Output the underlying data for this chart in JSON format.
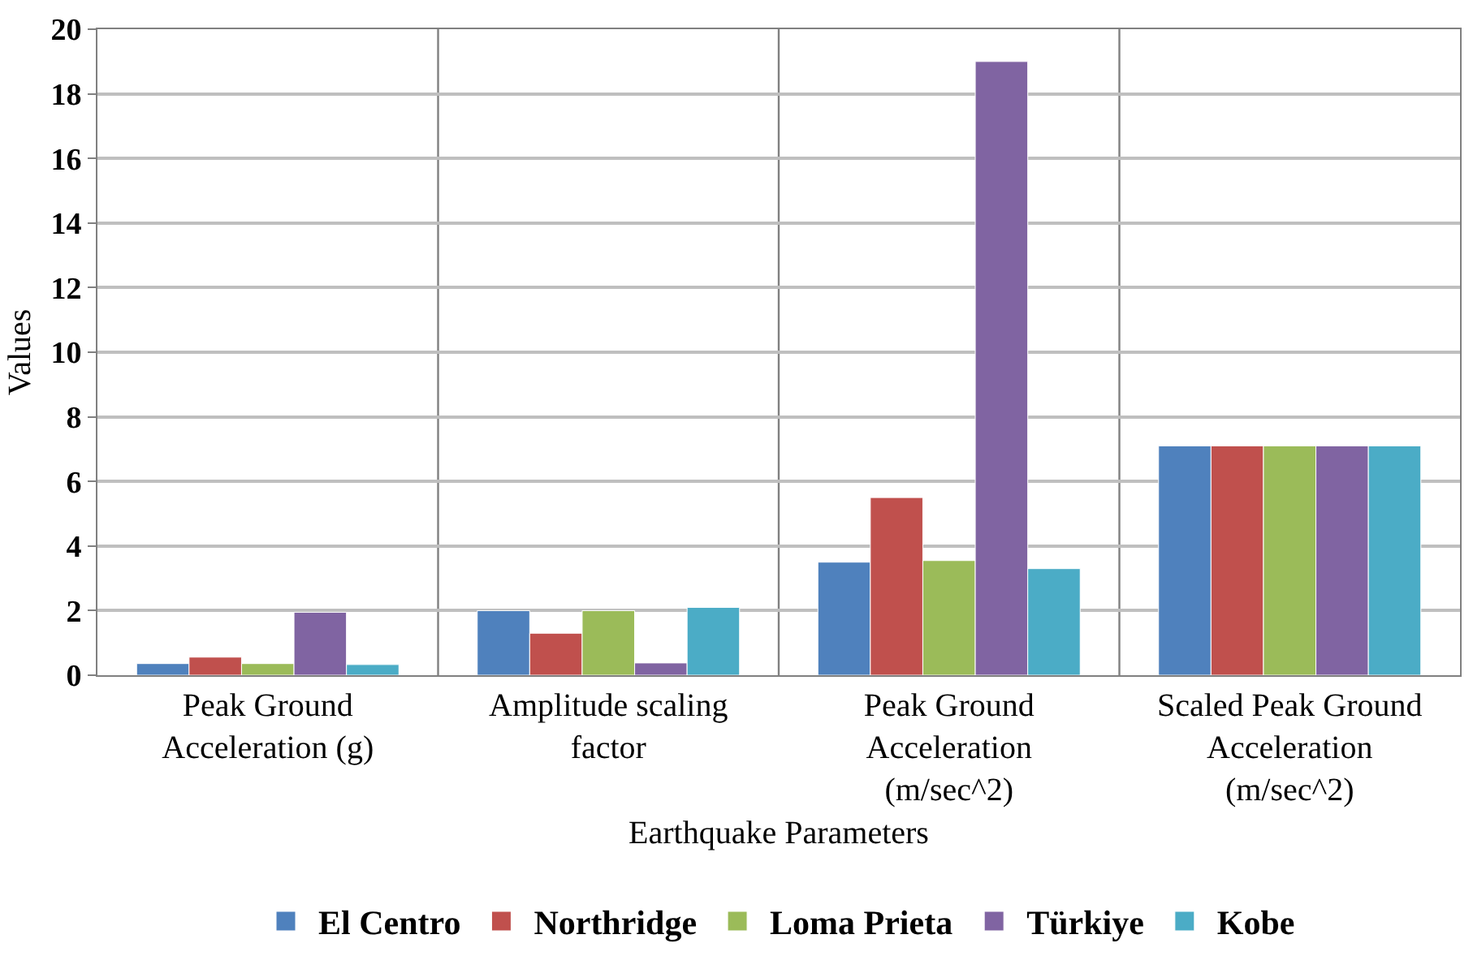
{
  "chart_data": {
    "type": "bar",
    "xlabel": "Earthquake Parameters",
    "ylabel": "Values",
    "categories": [
      "Peak Ground Acceleration (g)",
      "Amplitude scaling factor",
      "Peak Ground Acceleration (m/sec^2)",
      "Scaled Peak Ground Acceleration (m/sec^2)"
    ],
    "series": [
      {
        "name": "El Centro",
        "color": "#4f81bd",
        "values": [
          0.36,
          2.0,
          3.5,
          7.1
        ]
      },
      {
        "name": "Northridge",
        "color": "#c0504d",
        "values": [
          0.56,
          1.3,
          5.5,
          7.1
        ]
      },
      {
        "name": "Loma Prieta",
        "color": "#9bbb59",
        "values": [
          0.36,
          2.0,
          3.55,
          7.1
        ]
      },
      {
        "name": "Türkiye",
        "color": "#8064a2",
        "values": [
          1.95,
          0.38,
          19.0,
          7.1
        ]
      },
      {
        "name": "Kobe",
        "color": "#4bacc6",
        "values": [
          0.33,
          2.1,
          3.3,
          7.1
        ]
      }
    ],
    "ylim": [
      0,
      20
    ],
    "yticks": [
      0,
      2,
      4,
      6,
      8,
      10,
      12,
      14,
      16,
      18,
      20
    ],
    "grid": true,
    "legend": "bottom"
  }
}
